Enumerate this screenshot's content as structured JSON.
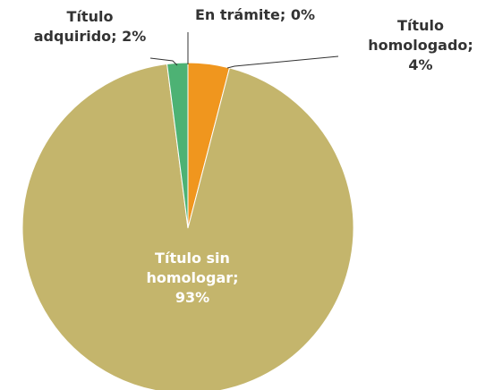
{
  "chart_data": {
    "type": "pie",
    "categories": [
      "Título homologado",
      "Título sin homologar",
      "Título adquirido",
      "En trámite"
    ],
    "values": [
      4,
      93,
      2,
      0
    ],
    "value_labels": [
      "Título homologado; 4%",
      "Título sin homologar; 93%",
      "Título adquirido; 2%",
      "En trámite; 0%"
    ],
    "colors": [
      "#f0961e",
      "#c4b56c",
      "#4db274",
      "#4f81bd"
    ]
  }
}
